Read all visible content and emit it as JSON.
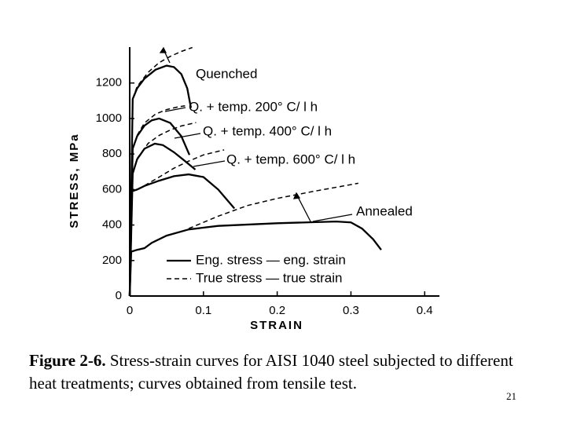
{
  "chart_data": {
    "type": "line",
    "x_label": "STRAIN",
    "y_label": "STRESS, MPa",
    "xlim": [
      0,
      0.42
    ],
    "ylim": [
      0,
      1400
    ],
    "xticks": [
      0,
      0.1,
      0.2,
      0.3,
      0.4
    ],
    "yticks": [
      0,
      200,
      400,
      600,
      800,
      1000,
      1200
    ],
    "color": "#000000",
    "legend": [
      {
        "label": "Eng. stress — eng. strain",
        "style": "solid"
      },
      {
        "label": "True stress — true strain",
        "style": "dashed"
      }
    ],
    "series": [
      {
        "name": "Quenched",
        "eng_x": [
          0,
          0.004,
          0.01,
          0.02,
          0.035,
          0.05,
          0.06,
          0.07,
          0.078,
          0.083
        ],
        "eng": [
          0,
          1110,
          1170,
          1225,
          1275,
          1298,
          1290,
          1250,
          1170,
          1060
        ],
        "true_x": [
          0.004,
          0.01,
          0.025,
          0.04,
          0.055,
          0.07,
          0.085
        ],
        "true": [
          1110,
          1180,
          1260,
          1315,
          1350,
          1378,
          1400
        ]
      },
      {
        "name": "Q. + temp. 200° C/ l h",
        "eng_x": [
          0,
          0.004,
          0.01,
          0.02,
          0.03,
          0.04,
          0.055,
          0.07,
          0.081
        ],
        "eng": [
          0,
          830,
          900,
          960,
          990,
          1000,
          975,
          900,
          795
        ],
        "true_x": [
          0.01,
          0.02,
          0.035,
          0.05,
          0.065,
          0.075
        ],
        "true": [
          905,
          975,
          1025,
          1050,
          1065,
          1072
        ]
      },
      {
        "name": "Q. + temp. 400° C/ l h",
        "eng_x": [
          0,
          0.004,
          0.01,
          0.02,
          0.034,
          0.045,
          0.06,
          0.075,
          0.089
        ],
        "eng": [
          0,
          690,
          770,
          830,
          858,
          850,
          810,
          760,
          712
        ],
        "true_x": [
          0.01,
          0.025,
          0.04,
          0.055,
          0.07,
          0.09
        ],
        "true": [
          775,
          860,
          905,
          935,
          958,
          977
        ]
      },
      {
        "name": "Q. + temp. 600° C/ l h",
        "eng_x": [
          0,
          0.003,
          0.01,
          0.02,
          0.04,
          0.06,
          0.08,
          0.1,
          0.12,
          0.142
        ],
        "eng": [
          0,
          590,
          600,
          620,
          650,
          675,
          685,
          670,
          600,
          493
        ],
        "true_x": [
          0.02,
          0.04,
          0.06,
          0.08,
          0.1,
          0.128
        ],
        "true": [
          622,
          670,
          720,
          760,
          795,
          823
        ]
      },
      {
        "name": "Annealed",
        "eng_x": [
          0,
          0.002,
          0.01,
          0.02,
          0.03,
          0.05,
          0.08,
          0.12,
          0.2,
          0.28,
          0.3,
          0.315,
          0.33,
          0.341
        ],
        "eng": [
          0,
          250,
          260,
          270,
          300,
          340,
          375,
          395,
          410,
          420,
          415,
          380,
          320,
          260
        ],
        "true_x": [
          0.08,
          0.12,
          0.16,
          0.2,
          0.25,
          0.31
        ],
        "true": [
          380,
          450,
          510,
          550,
          590,
          635
        ]
      }
    ]
  },
  "caption": {
    "label": "Figure 2-6.",
    "text": " Stress-strain curves for AISI 1040 steel subjected to different heat treatments; curves obtained from tensile test."
  },
  "page_number": "21"
}
